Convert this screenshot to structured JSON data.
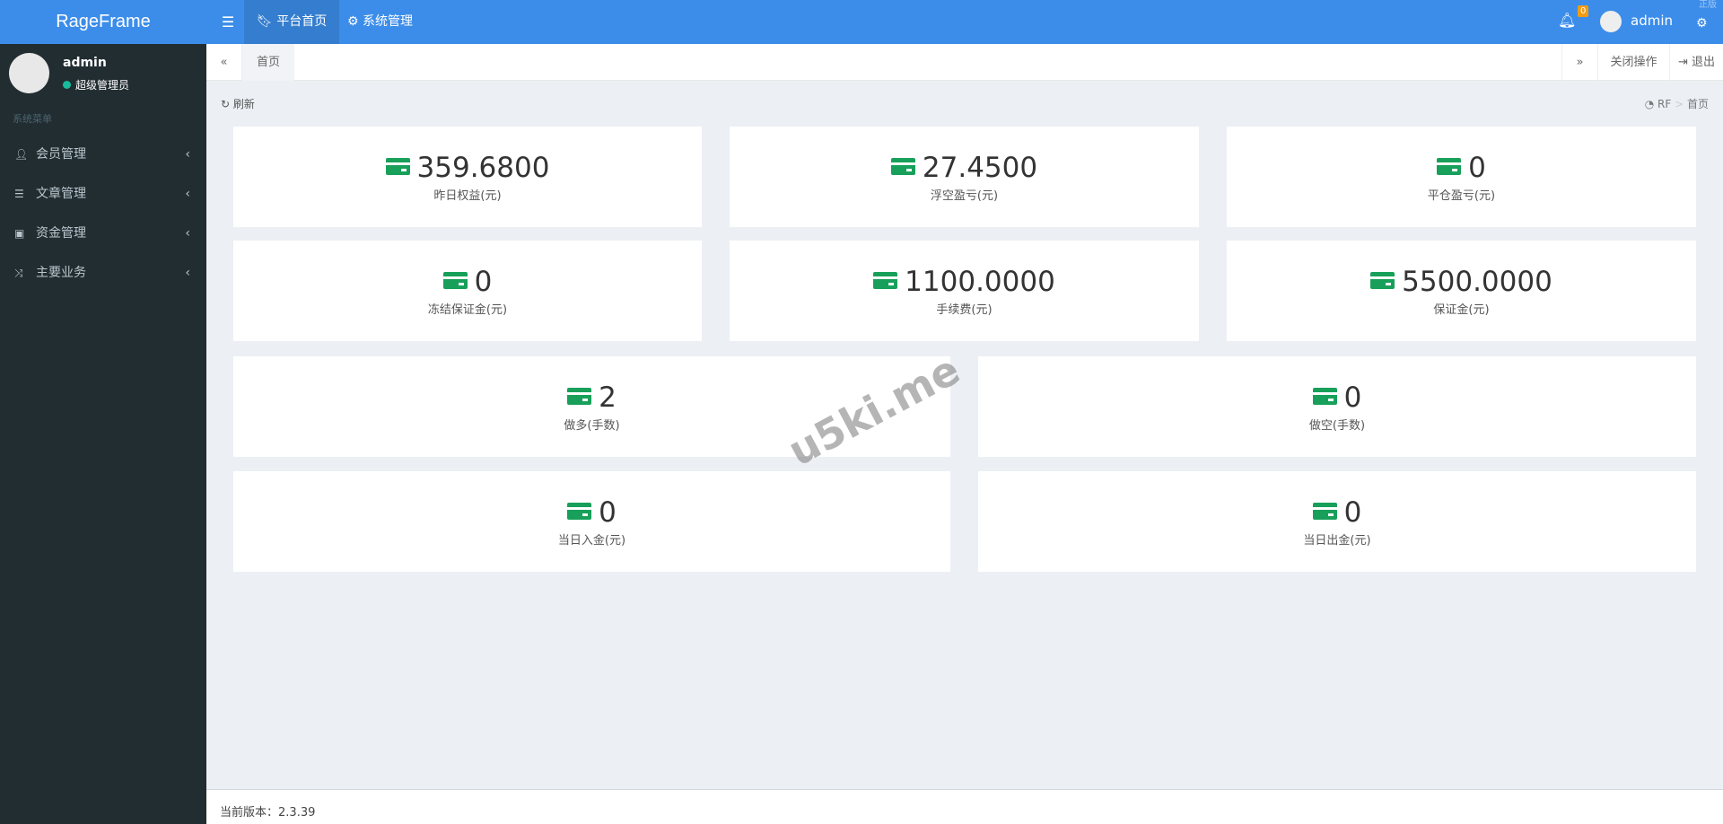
{
  "header": {
    "logo": "RageFrame",
    "nav": [
      {
        "label": "平台首页",
        "icon": "bookmark-icon"
      },
      {
        "label": "系统管理",
        "icon": "cogs-icon"
      }
    ],
    "notifications": "0",
    "user": "admin",
    "corner_watermark": "正版"
  },
  "sidebar": {
    "user": "admin",
    "role": "超级管理员",
    "section": "系统菜单",
    "items": [
      {
        "label": "会员管理",
        "icon": "user-icon"
      },
      {
        "label": "文章管理",
        "icon": "list-icon"
      },
      {
        "label": "资金管理",
        "icon": "money-icon"
      },
      {
        "label": "主要业务",
        "icon": "random-icon"
      }
    ]
  },
  "tabs": {
    "prev": "«",
    "home": "首页",
    "next": "»",
    "close_ops": "关闭操作",
    "logout": "退出"
  },
  "toolbar": {
    "refresh": "刷新",
    "breadcrumb_root": "RF",
    "breadcrumb_sep": ">",
    "breadcrumb_current": "首页"
  },
  "stats": [
    {
      "value": "359.6800",
      "label": "昨日权益(元)"
    },
    {
      "value": "27.4500",
      "label": "浮空盈亏(元)"
    },
    {
      "value": "0",
      "label": "平仓盈亏(元)"
    },
    {
      "value": "0",
      "label": "冻结保证金(元)"
    },
    {
      "value": "1100.0000",
      "label": "手续费(元)"
    },
    {
      "value": "5500.0000",
      "label": "保证金(元)"
    },
    {
      "value": "2",
      "label": "做多(手数)"
    },
    {
      "value": "0",
      "label": "做空(手数)"
    },
    {
      "value": "0",
      "label": "当日入金(元)"
    },
    {
      "value": "0",
      "label": "当日出金(元)"
    }
  ],
  "watermark": "u5ki.me",
  "footer": {
    "version_label": "当前版本：",
    "version": "2.3.39"
  },
  "colors": {
    "header": "#3c8dea",
    "sidebar": "#222d32",
    "icon": "#18a05a"
  }
}
